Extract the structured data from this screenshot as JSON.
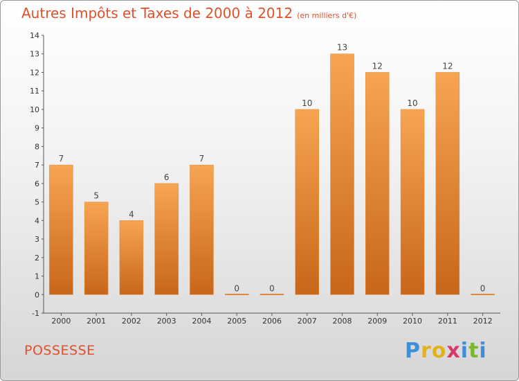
{
  "chart_data": {
    "type": "bar",
    "title": "Autres Impôts et Taxes de 2000 à 2012",
    "unit_note": "(en milliers d'€)",
    "categories": [
      "2000",
      "2001",
      "2002",
      "2003",
      "2004",
      "2005",
      "2006",
      "2007",
      "2008",
      "2009",
      "2010",
      "2011",
      "2012"
    ],
    "values": [
      7,
      5,
      4,
      6,
      7,
      0,
      0,
      10,
      13,
      12,
      10,
      12,
      0
    ],
    "ylim": [
      -1,
      14
    ],
    "yticks": [
      -1,
      0,
      1,
      2,
      3,
      4,
      5,
      6,
      7,
      8,
      9,
      10,
      11,
      12,
      13,
      14
    ],
    "xlabel": "",
    "ylabel": "",
    "bar_color": "#f0923a",
    "bar_color_dark": "#c96a1c",
    "grid": false
  },
  "footer": {
    "commune": "POSSESSE",
    "logo": "Proxiti"
  },
  "colors": {
    "title": "#e0502a"
  }
}
